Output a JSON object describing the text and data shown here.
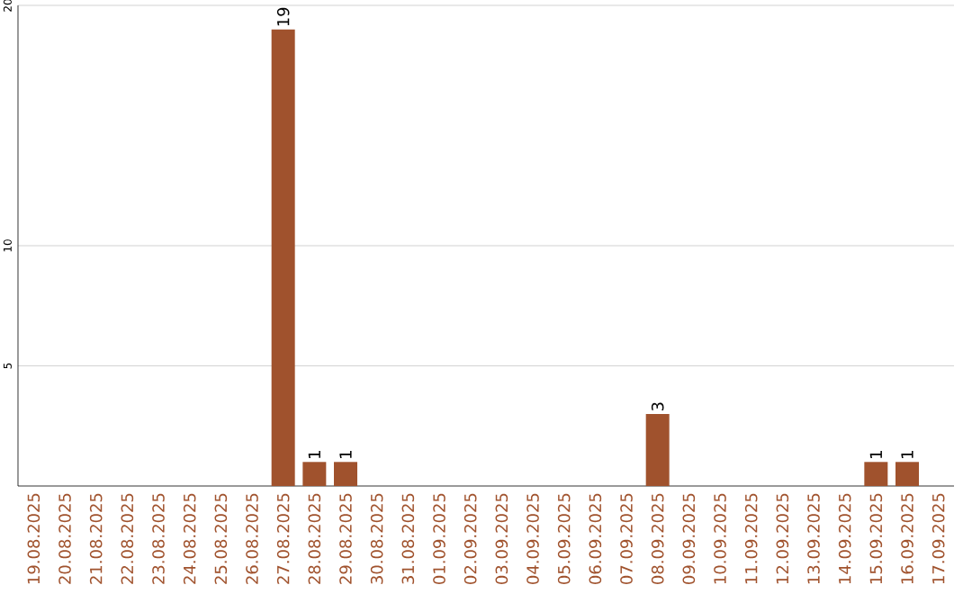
{
  "chart_data": {
    "type": "bar",
    "categories": [
      "19.08.2025",
      "20.08.2025",
      "21.08.2025",
      "22.08.2025",
      "23.08.2025",
      "24.08.2025",
      "25.08.2025",
      "26.08.2025",
      "27.08.2025",
      "28.08.2025",
      "29.08.2025",
      "30.08.2025",
      "31.08.2025",
      "01.09.2025",
      "02.09.2025",
      "03.09.2025",
      "04.09.2025",
      "05.09.2025",
      "06.09.2025",
      "07.09.2025",
      "08.09.2025",
      "09.09.2025",
      "10.09.2025",
      "11.09.2025",
      "12.09.2025",
      "13.09.2025",
      "14.09.2025",
      "15.09.2025",
      "16.09.2025",
      "17.09.2025"
    ],
    "values": [
      0,
      0,
      0,
      0,
      0,
      0,
      0,
      0,
      19,
      1,
      1,
      0,
      0,
      0,
      0,
      0,
      0,
      0,
      0,
      0,
      3,
      0,
      0,
      0,
      0,
      0,
      0,
      1,
      1,
      0
    ],
    "value_labels": [
      null,
      null,
      null,
      null,
      null,
      null,
      null,
      null,
      "19",
      "1",
      "1",
      null,
      null,
      null,
      null,
      null,
      null,
      null,
      null,
      null,
      "3",
      null,
      null,
      null,
      null,
      null,
      null,
      "1",
      "1",
      null
    ],
    "color": "#a0522d",
    "ylim": [
      0,
      20
    ],
    "yticks": [
      5,
      10,
      20
    ],
    "grid": "y"
  }
}
